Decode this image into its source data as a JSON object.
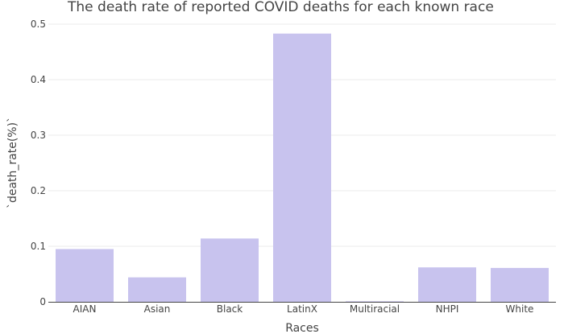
{
  "chart_data": {
    "type": "bar",
    "title": "The death rate of reported COVID deaths for each known race",
    "xlabel": "Races",
    "ylabel": "`death_rate(%)`",
    "categories": [
      "AIAN",
      "Asian",
      "Black",
      "LatinX",
      "Multiracial",
      "NHPI",
      "White"
    ],
    "values": [
      0.095,
      0.044,
      0.114,
      0.483,
      0.001,
      0.062,
      0.061
    ],
    "ylim": [
      0,
      0.5
    ],
    "yticks": [
      0,
      0.1,
      0.2,
      0.3,
      0.4,
      0.5
    ],
    "ytick_labels": [
      "0",
      "0.1",
      "0.2",
      "0.3",
      "0.4",
      "0.5"
    ],
    "grid": true,
    "bar_color": "#c8c3ee"
  }
}
